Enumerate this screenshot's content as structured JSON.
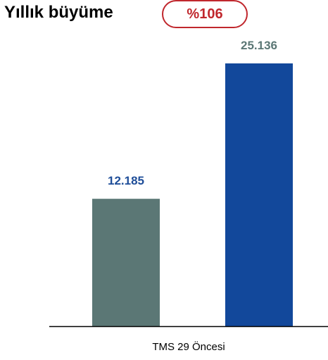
{
  "header": {
    "title": "Yıllık büyüme",
    "growth_badge": "%106"
  },
  "colors": {
    "badge": "#c0272d",
    "bar_first": "#5b7775",
    "bar_second": "#12489b",
    "label_first": "#1f4e99",
    "label_second": "#5b7775",
    "axis": "#000000"
  },
  "chart_data": {
    "type": "bar",
    "categories": [
      "TMS 29 Öncesi"
    ],
    "series": [
      {
        "values": [
          12185
        ],
        "value_label": "12.185"
      },
      {
        "values": [
          25136
        ],
        "value_label": "25.136"
      }
    ],
    "title": "",
    "xlabel": "",
    "ylabel": "",
    "ylim": [
      0,
      25136
    ],
    "grid": false,
    "legend": "none"
  }
}
